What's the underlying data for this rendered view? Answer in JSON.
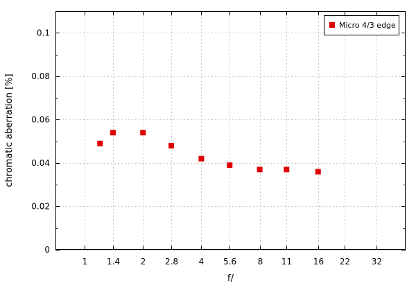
{
  "chart_data": {
    "type": "scatter",
    "title": "",
    "xlabel": "f/",
    "ylabel": "chromatic aberration [%]",
    "x_ticks": [
      "1",
      "1.4",
      "2",
      "2.8",
      "4",
      "5.6",
      "8",
      "11",
      "16",
      "22",
      "32"
    ],
    "y_ticks": [
      "0",
      "0.02",
      "0.04",
      "0.06",
      "0.08",
      "0.1"
    ],
    "ylim": [
      0,
      0.11
    ],
    "x_scale": "log",
    "grid": true,
    "legend_position": "top-right",
    "series": [
      {
        "name": "Micro 4/3 edge",
        "color": "#e00000",
        "marker": "square",
        "points": [
          {
            "x": 1.2,
            "y": 0.049
          },
          {
            "x": 1.4,
            "y": 0.054
          },
          {
            "x": 2.0,
            "y": 0.054
          },
          {
            "x": 2.8,
            "y": 0.048
          },
          {
            "x": 4.0,
            "y": 0.042
          },
          {
            "x": 5.6,
            "y": 0.039
          },
          {
            "x": 8.0,
            "y": 0.037
          },
          {
            "x": 11.0,
            "y": 0.037
          },
          {
            "x": 16.0,
            "y": 0.036
          }
        ]
      }
    ]
  }
}
